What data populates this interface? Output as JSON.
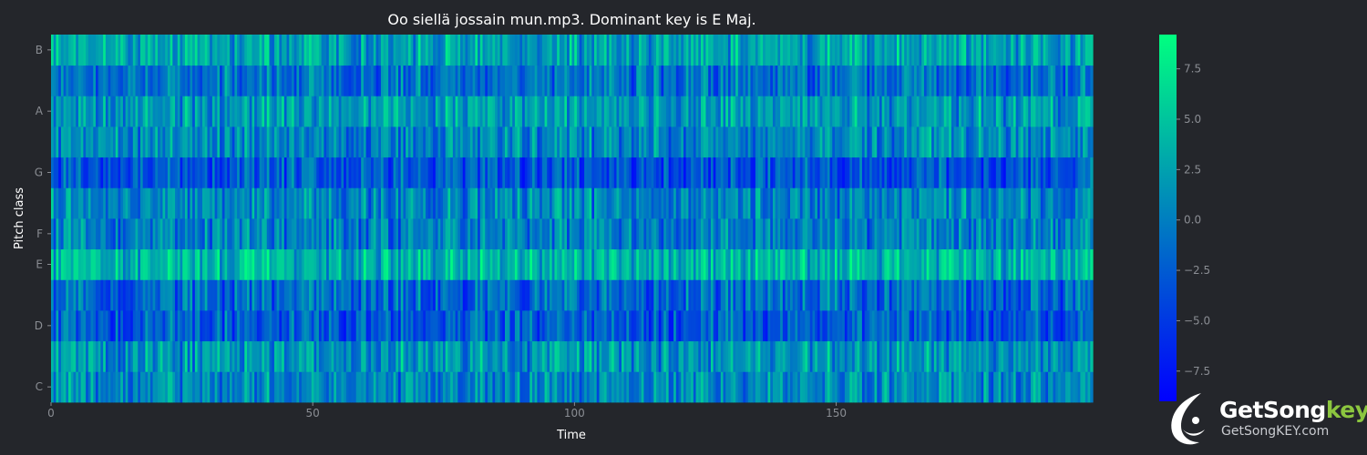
{
  "chart_data": {
    "type": "heatmap",
    "title": "Oo siellä jossain mun.mp3. Dominant key is E Maj.",
    "xlabel": "Time",
    "ylabel": "Pitch class",
    "rows_bottom_to_top": [
      "C",
      "C#",
      "D",
      "D#",
      "E",
      "F",
      "F#",
      "G",
      "G#",
      "A",
      "A#",
      "B"
    ],
    "y_tick_labels": [
      "C",
      "D",
      "E",
      "F",
      "G",
      "A",
      "B"
    ],
    "xlim": [
      0,
      199
    ],
    "x_ticks": [
      0,
      50,
      100,
      150
    ],
    "color_range": [
      -9,
      9.2
    ],
    "colorbar_ticks": [
      7.5,
      5.0,
      2.5,
      0.0,
      -2.5,
      -5.0,
      -7.5
    ],
    "colormap": [
      "#0000ff",
      "#00ff80"
    ],
    "row_mean_levels": {
      "C": 0.5,
      "C#": 1.5,
      "D": -2.5,
      "D#": -1.5,
      "E": 4.0,
      "F": 0.0,
      "F#": 0.5,
      "G": -3.0,
      "G#": 0.5,
      "A": 2.0,
      "A#": -1.0,
      "B": 2.5
    },
    "grid": false
  },
  "logo": {
    "brand_main": "GetSong",
    "brand_accent": "key",
    "site": "GetSongKEY.com"
  }
}
